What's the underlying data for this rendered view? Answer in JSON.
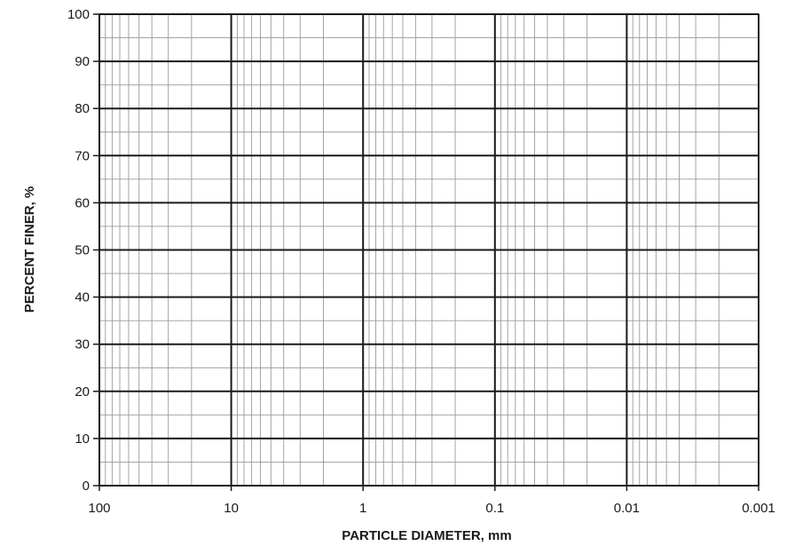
{
  "chart_data": {
    "type": "scatter",
    "title": "",
    "xlabel": "PARTICLE DIAMETER, mm",
    "ylabel": "PERCENT FINER, %",
    "xscale": "log",
    "x_direction": "decreasing",
    "xlim": [
      100,
      0.001
    ],
    "ylim": [
      0,
      100
    ],
    "x_ticks": [
      100,
      10,
      1,
      0.1,
      0.01,
      0.001
    ],
    "x_tick_labels": [
      "100",
      "10",
      "1",
      "0.1",
      "0.01",
      "0.001"
    ],
    "y_ticks": [
      0,
      10,
      20,
      30,
      40,
      50,
      60,
      70,
      80,
      90,
      100
    ],
    "y_tick_labels": [
      "0",
      "10",
      "20",
      "30",
      "40",
      "50",
      "60",
      "70",
      "80",
      "90",
      "100"
    ],
    "y_minor_step": 5,
    "grid": true,
    "series": []
  },
  "colors": {
    "major_grid": "#1a1a1a",
    "minor_grid": "#9a9a9a",
    "axis": "#1a1a1a"
  }
}
